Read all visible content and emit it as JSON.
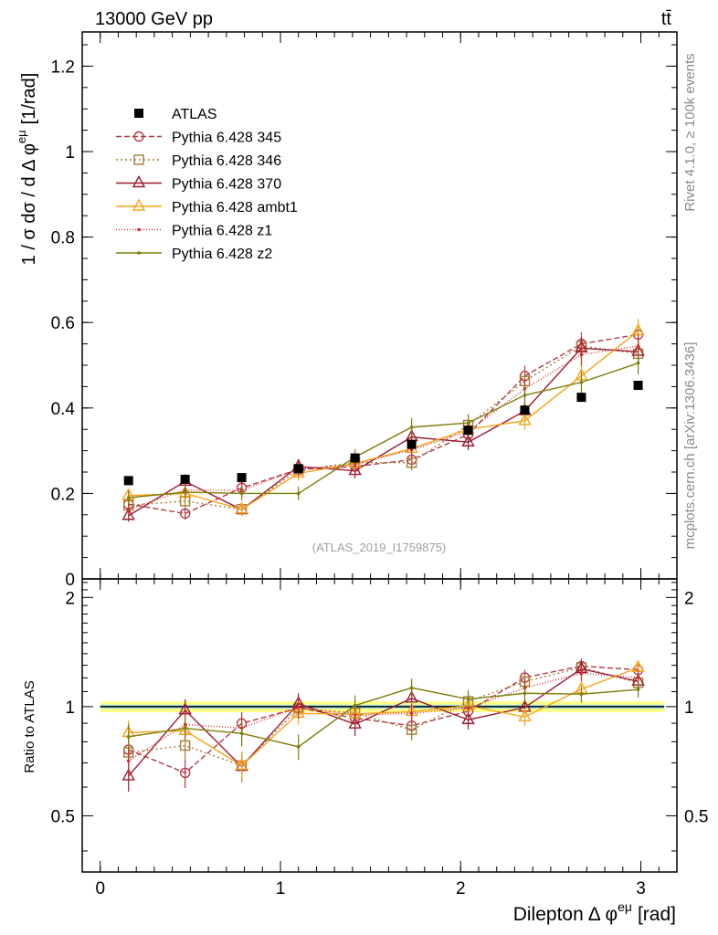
{
  "header": {
    "left": "13000 GeV pp",
    "right": "tt̄"
  },
  "side_texts": {
    "rivet": "Rivet 4.1.0, ≥ 100k events",
    "mcplots": "mcplots.cern.ch [arXiv:1306.3436]"
  },
  "watermark": "(ATLAS_2019_I1759875)",
  "chart_data": {
    "type": "line",
    "title": "13000 GeV pp  tt̄",
    "xlabel": "Dilepton Δ φ^eμ [rad]",
    "xlabel_main": "Dilepton",
    "xlabel_delta": "Δ φ",
    "xlabel_sup": "eμ",
    "xlabel_unit": "[rad]",
    "ylabel": "1 / σ dσ / d Δ φ^eμ [1/rad]",
    "ylabel_main": "1 / σ  dσ / d Δ φ",
    "ylabel_sup": "eμ",
    "ylabel_unit": "[1/rad]",
    "ratio_ylabel": "Ratio to ATLAS",
    "xlim": [
      -0.1,
      3.2
    ],
    "ylim": [
      0,
      1.28
    ],
    "ratio_ylim": [
      0.35,
      2.25
    ],
    "x_ticks": [
      0,
      1,
      2,
      3
    ],
    "x_tick_labels": [
      "0",
      "1",
      "2",
      "3"
    ],
    "y_ticks": [
      0,
      0.2,
      0.4,
      0.6,
      0.8,
      1,
      1.2
    ],
    "y_tick_labels": [
      "0",
      "0.2",
      "0.4",
      "0.6",
      "0.8",
      "1",
      "1.2"
    ],
    "ratio_ticks": [
      0.5,
      1,
      2
    ],
    "ratio_tick_labels": [
      "0.5",
      "1",
      "2"
    ],
    "x": [
      0.157,
      0.471,
      0.785,
      1.1,
      1.414,
      1.728,
      2.042,
      2.356,
      2.67,
      2.985
    ],
    "data": {
      "name": "ATLAS",
      "values": [
        0.23,
        0.233,
        0.237,
        0.258,
        0.283,
        0.315,
        0.348,
        0.395,
        0.425,
        0.453
      ],
      "errors": [
        0.006,
        0.006,
        0.006,
        0.006,
        0.006,
        0.007,
        0.007,
        0.008,
        0.009,
        0.009
      ]
    },
    "series": [
      {
        "name": "Pythia 6.428 345",
        "color": "#b03a48",
        "dash": "6,3",
        "marker": "circle",
        "values": [
          0.175,
          0.153,
          0.213,
          0.256,
          0.263,
          0.279,
          0.338,
          0.475,
          0.55,
          0.572
        ],
        "errors": [
          0.015,
          0.014,
          0.016,
          0.017,
          0.018,
          0.018,
          0.02,
          0.024,
          0.027,
          0.028
        ]
      },
      {
        "name": "Pythia 6.428 346",
        "color": "#a67c3a",
        "dash": "2,3",
        "marker": "square",
        "values": [
          0.172,
          0.182,
          0.163,
          0.255,
          0.272,
          0.272,
          0.36,
          0.463,
          0.545,
          0.527
        ],
        "errors": [
          0.015,
          0.015,
          0.015,
          0.017,
          0.018,
          0.018,
          0.02,
          0.023,
          0.027,
          0.027
        ]
      },
      {
        "name": "Pythia 6.428 370",
        "color": "#9b1b30",
        "dash": "",
        "marker": "triangle",
        "values": [
          0.148,
          0.228,
          0.162,
          0.263,
          0.253,
          0.332,
          0.32,
          0.393,
          0.54,
          0.532
        ],
        "errors": [
          0.014,
          0.016,
          0.015,
          0.018,
          0.018,
          0.019,
          0.019,
          0.022,
          0.027,
          0.027
        ]
      },
      {
        "name": "Pythia 6.428 ambt1",
        "color": "#f5a31a",
        "dash": "",
        "marker": "triangle",
        "values": [
          0.195,
          0.2,
          0.163,
          0.247,
          0.27,
          0.305,
          0.35,
          0.37,
          0.475,
          0.58
        ],
        "errors": [
          0.016,
          0.016,
          0.015,
          0.017,
          0.018,
          0.019,
          0.02,
          0.021,
          0.025,
          0.029
        ]
      },
      {
        "name": "Pythia 6.428 z1",
        "color": "#d42d2d",
        "dash": "1,2",
        "marker": "dot",
        "values": [
          0.163,
          0.208,
          0.207,
          0.257,
          0.268,
          0.302,
          0.345,
          0.445,
          0.525,
          0.545
        ],
        "errors": [
          0.015,
          0.016,
          0.016,
          0.017,
          0.018,
          0.019,
          0.02,
          0.023,
          0.026,
          0.027
        ]
      },
      {
        "name": "Pythia 6.428 z2",
        "color": "#7d7d0a",
        "dash": "",
        "marker": "dot",
        "values": [
          0.19,
          0.203,
          0.2,
          0.2,
          0.285,
          0.355,
          0.365,
          0.43,
          0.46,
          0.505
        ],
        "errors": [
          0.016,
          0.016,
          0.016,
          0.016,
          0.019,
          0.021,
          0.021,
          0.023,
          0.024,
          0.026
        ]
      }
    ],
    "band_colors": {
      "inner": "#7fd3f5",
      "outer": "#ffff80"
    },
    "legend_position": "top-left"
  }
}
